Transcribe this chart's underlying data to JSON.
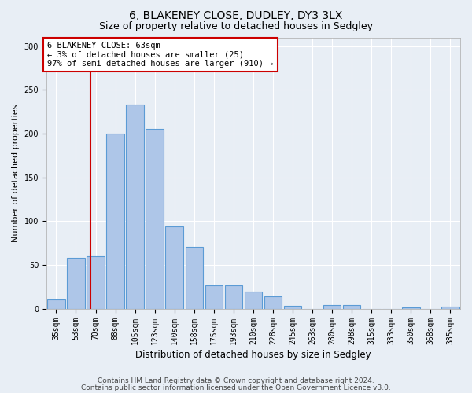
{
  "title1": "6, BLAKENEY CLOSE, DUDLEY, DY3 3LX",
  "title2": "Size of property relative to detached houses in Sedgley",
  "xlabel": "Distribution of detached houses by size in Sedgley",
  "ylabel": "Number of detached properties",
  "categories": [
    "35sqm",
    "53sqm",
    "70sqm",
    "88sqm",
    "105sqm",
    "123sqm",
    "140sqm",
    "158sqm",
    "175sqm",
    "193sqm",
    "210sqm",
    "228sqm",
    "245sqm",
    "263sqm",
    "280sqm",
    "298sqm",
    "315sqm",
    "333sqm",
    "350sqm",
    "368sqm",
    "385sqm"
  ],
  "values": [
    10,
    58,
    60,
    200,
    233,
    205,
    94,
    71,
    27,
    27,
    19,
    14,
    3,
    0,
    4,
    4,
    0,
    0,
    1,
    0,
    2
  ],
  "bar_color": "#aec6e8",
  "bar_edge_color": "#5b9bd5",
  "bg_color": "#e8eef5",
  "grid_color": "#ffffff",
  "red_line_x": 1.72,
  "annotation_text": "6 BLAKENEY CLOSE: 63sqm\n← 3% of detached houses are smaller (25)\n97% of semi-detached houses are larger (910) →",
  "annotation_box_color": "#ffffff",
  "annotation_border_color": "#cc0000",
  "footer1": "Contains HM Land Registry data © Crown copyright and database right 2024.",
  "footer2": "Contains public sector information licensed under the Open Government Licence v3.0.",
  "ylim": [
    0,
    310
  ],
  "yticks": [
    0,
    50,
    100,
    150,
    200,
    250,
    300
  ],
  "title1_fontsize": 10,
  "title2_fontsize": 9,
  "xlabel_fontsize": 8.5,
  "ylabel_fontsize": 8,
  "tick_fontsize": 7,
  "annotation_fontsize": 7.5,
  "footer_fontsize": 6.5
}
